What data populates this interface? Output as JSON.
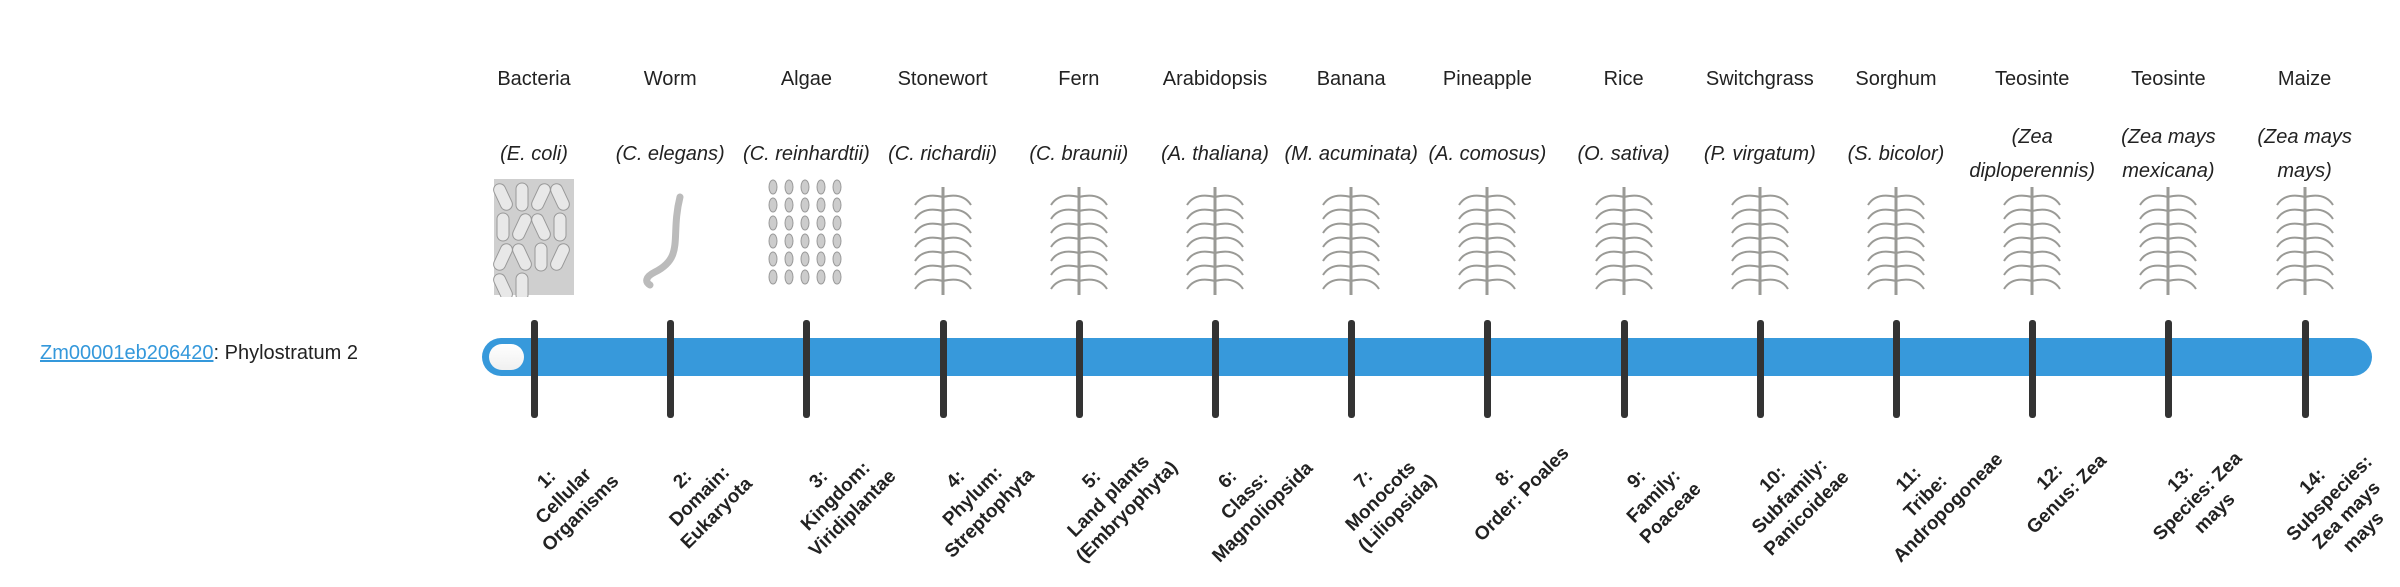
{
  "gene": {
    "id": "Zm00001eb206420",
    "separator": ":",
    "result": "Phylostratum 2"
  },
  "colors": {
    "bar": "#3799db",
    "tick": "#333333",
    "link": "#3498db"
  },
  "progress": {
    "phylostratum": 2,
    "total": 14
  },
  "organisms": [
    {
      "common": "Bacteria",
      "species": "(E. coli)",
      "icon": "bacteria-illustration"
    },
    {
      "common": "Worm",
      "species": "(C. elegans)",
      "icon": "worm-illustration"
    },
    {
      "common": "Algae",
      "species": "(C. reinhardtii)",
      "icon": "algae-illustration"
    },
    {
      "common": "Stonewort",
      "species": "(C. richardii)",
      "icon": "stonewort-illustration"
    },
    {
      "common": "Fern",
      "species": "(C. braunii)",
      "icon": "fern-illustration"
    },
    {
      "common": "Arabidopsis",
      "species": "(A. thaliana)",
      "icon": "arabidopsis-illustration"
    },
    {
      "common": "Banana",
      "species": "(M. acuminata)",
      "icon": "banana-illustration"
    },
    {
      "common": "Pineapple",
      "species": "(A. comosus)",
      "icon": "pineapple-illustration"
    },
    {
      "common": "Rice",
      "species": "(O. sativa)",
      "icon": "rice-illustration"
    },
    {
      "common": "Switchgrass",
      "species": "(P. virgatum)",
      "icon": "switchgrass-illustration"
    },
    {
      "common": "Sorghum",
      "species": "(S. bicolor)",
      "icon": "sorghum-illustration"
    },
    {
      "common": "Teosinte",
      "species": "(Zea diploperennis)",
      "icon": "teosinte-illustration"
    },
    {
      "common": "Teosinte",
      "species": "(Zea mays mexicana)",
      "icon": "teosinte-illustration"
    },
    {
      "common": "Maize",
      "species": "(Zea mays mays)",
      "icon": "maize-illustration"
    }
  ],
  "strata": [
    {
      "num": "1:",
      "name": "Cellular Organisms"
    },
    {
      "num": "2:",
      "name": "Domain: Eukaryota"
    },
    {
      "num": "3:",
      "name": "Kingdom: Viridiplantae"
    },
    {
      "num": "4:",
      "name": "Phylum: Streptophyta"
    },
    {
      "num": "5:",
      "name": "Land plants (Embryophyta)"
    },
    {
      "num": "6:",
      "name": "Class: Magnoliopsida"
    },
    {
      "num": "7:",
      "name": "Monocots (Liliopsida)"
    },
    {
      "num": "8:",
      "name": "Order: Poales"
    },
    {
      "num": "9:",
      "name": "Family: Poaceae"
    },
    {
      "num": "10:",
      "name": "Subfamily: Panicoideae"
    },
    {
      "num": "11:",
      "name": "Tribe: Andropogoneae"
    },
    {
      "num": "12:",
      "name": "Genus: Zea"
    },
    {
      "num": "13:",
      "name": "Species: Zea mays"
    },
    {
      "num": "14:",
      "name": "Subspecies: Zea mays mays"
    }
  ]
}
